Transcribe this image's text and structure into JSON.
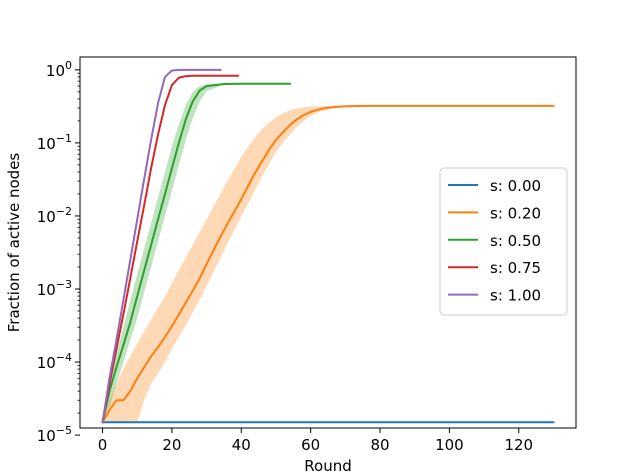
{
  "chart_data": {
    "type": "line",
    "title": "",
    "xlabel": "Round",
    "ylabel": "Fraction of active nodes",
    "yscale": "log",
    "xlim": [
      -6.5,
      136.5
    ],
    "ylim": [
      1.25e-05,
      1.5
    ],
    "x_ticks": [
      0,
      20,
      40,
      60,
      80,
      100,
      120
    ],
    "x_tick_labels": [
      "0",
      "20",
      "40",
      "60",
      "80",
      "100",
      "120"
    ],
    "y_ticks": [
      1e-05,
      0.0001,
      0.001,
      0.01,
      0.1,
      1
    ],
    "y_tick_labels": [
      {
        "base": "10",
        "exp": "−5"
      },
      {
        "base": "10",
        "exp": "−4"
      },
      {
        "base": "10",
        "exp": "−3"
      },
      {
        "base": "10",
        "exp": "−2"
      },
      {
        "base": "10",
        "exp": "−1"
      },
      {
        "base": "10",
        "exp": "0"
      }
    ],
    "grid": false,
    "legend_position": "center-right",
    "series": [
      {
        "name": "s: 0.00",
        "color": "#1f77b4",
        "x": [
          0,
          130
        ],
        "y": [
          1.5e-05,
          1.5e-05
        ]
      },
      {
        "name": "s: 0.20",
        "color": "#ff7f0e",
        "x": [
          0,
          2,
          4,
          6,
          8,
          10,
          12,
          14,
          16,
          18,
          20,
          22,
          24,
          26,
          28,
          30,
          32,
          34,
          36,
          38,
          40,
          42,
          44,
          46,
          48,
          50,
          52,
          54,
          56,
          58,
          60,
          62,
          64,
          66,
          68,
          70,
          72,
          74,
          76,
          78,
          80,
          85,
          90,
          100,
          110,
          120,
          130
        ],
        "y": [
          1.5e-05,
          2.2e-05,
          3e-05,
          3e-05,
          4e-05,
          6e-05,
          8.5e-05,
          0.00012,
          0.00016,
          0.00022,
          0.00031,
          0.00045,
          0.00065,
          0.00095,
          0.0014,
          0.0022,
          0.0034,
          0.0052,
          0.0078,
          0.0115,
          0.017,
          0.026,
          0.039,
          0.056,
          0.08,
          0.11,
          0.14,
          0.175,
          0.21,
          0.24,
          0.265,
          0.285,
          0.298,
          0.307,
          0.313,
          0.317,
          0.319,
          0.32,
          0.321,
          0.321,
          0.321,
          0.321,
          0.321,
          0.321,
          0.321,
          0.321,
          0.321
        ],
        "band_low": [
          1.5e-05,
          1.5e-05,
          1.5e-05,
          1.5e-05,
          1.5e-05,
          1.5e-05,
          3e-05,
          5e-05,
          7e-05,
          0.0001,
          0.00015,
          0.00022,
          0.00032,
          0.00048,
          0.00072,
          0.0011,
          0.0017,
          0.0027,
          0.0042,
          0.0065,
          0.01,
          0.015,
          0.023,
          0.035,
          0.052,
          0.075,
          0.1,
          0.13,
          0.165,
          0.2,
          0.235,
          0.26,
          0.28,
          0.295,
          0.305,
          0.312,
          0.316,
          0.318,
          0.32,
          0.32,
          0.32,
          0.32,
          0.32,
          0.32,
          0.32,
          0.32,
          0.32
        ],
        "band_high": [
          1.5e-05,
          3e-05,
          5e-05,
          8e-05,
          0.00012,
          0.00018,
          0.00026,
          0.00038,
          0.00055,
          0.0008,
          0.0012,
          0.0018,
          0.0027,
          0.004,
          0.006,
          0.009,
          0.0135,
          0.02,
          0.03,
          0.044,
          0.064,
          0.09,
          0.12,
          0.155,
          0.19,
          0.225,
          0.255,
          0.28,
          0.297,
          0.308,
          0.314,
          0.318,
          0.32,
          0.321,
          0.322,
          0.322,
          0.322,
          0.322,
          0.322,
          0.322,
          0.322,
          0.322,
          0.322,
          0.322,
          0.322,
          0.322,
          0.322
        ]
      },
      {
        "name": "s: 0.50",
        "color": "#2ca02c",
        "x": [
          0,
          2,
          4,
          6,
          8,
          10,
          12,
          14,
          16,
          18,
          20,
          22,
          24,
          26,
          28,
          30,
          35,
          40,
          45,
          50,
          54
        ],
        "y": [
          1.5e-05,
          4e-05,
          8.5e-05,
          0.00017,
          0.00035,
          0.0008,
          0.0018,
          0.004,
          0.009,
          0.02,
          0.045,
          0.1,
          0.21,
          0.37,
          0.52,
          0.6,
          0.64,
          0.645,
          0.645,
          0.645,
          0.645
        ],
        "band_low": [
          1.5e-05,
          2.5e-05,
          5e-05,
          0.0001,
          0.0002,
          0.0004,
          0.0009,
          0.002,
          0.0045,
          0.01,
          0.022,
          0.05,
          0.11,
          0.22,
          0.37,
          0.51,
          0.63,
          0.64,
          0.645,
          0.645,
          0.645
        ],
        "band_high": [
          1.5e-05,
          6e-05,
          0.00013,
          0.0003,
          0.0007,
          0.0016,
          0.0036,
          0.008,
          0.018,
          0.04,
          0.09,
          0.18,
          0.33,
          0.5,
          0.6,
          0.635,
          0.645,
          0.645,
          0.645,
          0.645,
          0.645
        ]
      },
      {
        "name": "s: 0.75",
        "color": "#d62728",
        "x": [
          0,
          2,
          4,
          6,
          8,
          10,
          12,
          14,
          16,
          18,
          20,
          22,
          24,
          26,
          28,
          30,
          35,
          39
        ],
        "y": [
          1.5e-05,
          5e-05,
          0.00015,
          0.00045,
          0.0014,
          0.0045,
          0.014,
          0.045,
          0.13,
          0.33,
          0.62,
          0.78,
          0.82,
          0.83,
          0.83,
          0.83,
          0.83,
          0.83
        ]
      },
      {
        "name": "s: 1.00",
        "color": "#9467bd",
        "x": [
          0,
          2,
          4,
          6,
          8,
          10,
          12,
          14,
          16,
          18,
          20,
          22,
          26,
          30,
          34
        ],
        "y": [
          1.5e-05,
          6e-05,
          0.0002,
          0.0007,
          0.0025,
          0.009,
          0.032,
          0.11,
          0.35,
          0.8,
          0.98,
          1.0,
          1.0,
          1.0,
          1.0
        ]
      }
    ]
  }
}
